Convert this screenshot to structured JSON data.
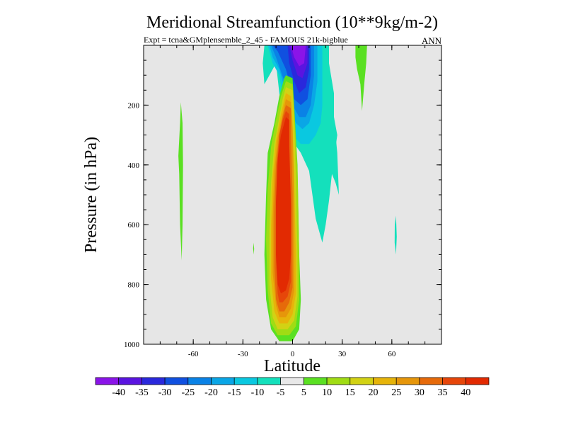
{
  "chart_data": {
    "type": "contour",
    "title": "Meridional Streamfunction (10**9kg/m-2)",
    "subtitle": "Expt = tcna&GMplensemble_2_45 - FAMOUS 21k-bigblue",
    "season_label": "ANN",
    "xlabel": "Latitude",
    "ylabel": "Pressure (in hPa)",
    "xlim": [
      -90,
      90
    ],
    "ylim": [
      1000,
      0
    ],
    "x_ticks": [
      -60,
      -30,
      0,
      30,
      60
    ],
    "x_tick_labels": [
      "-60",
      "-30",
      "0",
      "30",
      "60"
    ],
    "y_ticks": [
      200,
      400,
      600,
      800,
      1000
    ],
    "y_tick_labels": [
      "200",
      "400",
      "600",
      "800",
      "1000"
    ],
    "colorbar": {
      "levels": [
        "-40",
        "-35",
        "-30",
        "-25",
        "-20",
        "-15",
        "-10",
        "-5",
        "5",
        "10",
        "15",
        "20",
        "25",
        "30",
        "35",
        "40"
      ],
      "colors": [
        "#8a14e8",
        "#5a14e0",
        "#2a28dc",
        "#1050e0",
        "#0a82e6",
        "#0aa6e6",
        "#0ac8e0",
        "#14e0bc",
        "#e8e8e8",
        "#5ae022",
        "#a0dc14",
        "#d2d214",
        "#e6b40a",
        "#e6960a",
        "#e66a0a",
        "#e6460a",
        "#e22a02"
      ]
    },
    "features": [
      {
        "name": "tropical-positive-cell",
        "center_lat": -5,
        "center_pressure": 550,
        "max_value": 40,
        "extent_lat": [
          -10,
          5
        ],
        "extent_pressure": [
          70,
          990
        ]
      },
      {
        "name": "negative-upper-cell",
        "center_lat": 5,
        "center_pressure": 100,
        "min_value": -40,
        "extent_lat": [
          -15,
          25
        ],
        "extent_pressure": [
          0,
          300
        ]
      },
      {
        "name": "southern-weak-cell",
        "center_lat": -67,
        "center_pressure": 450,
        "value": 5
      },
      {
        "name": "northern-weak-cell",
        "center_lat": 43,
        "center_pressure": 60,
        "value": 5
      },
      {
        "name": "northern-negative-patch",
        "center_lat": 62,
        "center_pressure": 610,
        "value": -5
      }
    ]
  }
}
